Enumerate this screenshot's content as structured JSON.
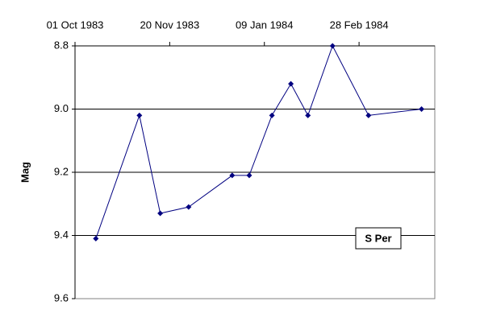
{
  "chart_data": {
    "type": "line",
    "y_label": "Mag",
    "x": [
      "1983-10-12",
      "1983-11-04",
      "1983-11-15",
      "1983-11-30",
      "1983-12-23",
      "1984-01-01",
      "1984-01-13",
      "1984-01-23",
      "1984-02-01",
      "1984-02-14",
      "1984-03-04",
      "1984-04-01"
    ],
    "series": [
      {
        "name": "S Per",
        "color": "#000080",
        "values": [
          9.41,
          9.02,
          9.33,
          9.31,
          9.21,
          9.21,
          9.02,
          8.92,
          9.02,
          8.8,
          9.02,
          9.0
        ]
      }
    ],
    "xlim": [
      "1983-10-01",
      "1984-04-08"
    ],
    "xticks": [
      {
        "value": "1983-10-01",
        "label": "01 Oct 1983"
      },
      {
        "value": "1983-11-20",
        "label": "20 Nov 1983"
      },
      {
        "value": "1984-01-09",
        "label": "09 Jan 1984"
      },
      {
        "value": "1984-02-28",
        "label": "28 Feb 1984"
      }
    ],
    "ylim": [
      8.8,
      9.6
    ],
    "y_inverted": true,
    "yticks": [
      {
        "value": 8.8,
        "label": "8.8"
      },
      {
        "value": 9.0,
        "label": "9.0"
      },
      {
        "value": 9.2,
        "label": "9.2"
      },
      {
        "value": 9.4,
        "label": "9.4"
      },
      {
        "value": 9.6,
        "label": "9.6"
      }
    ],
    "grid": true
  }
}
